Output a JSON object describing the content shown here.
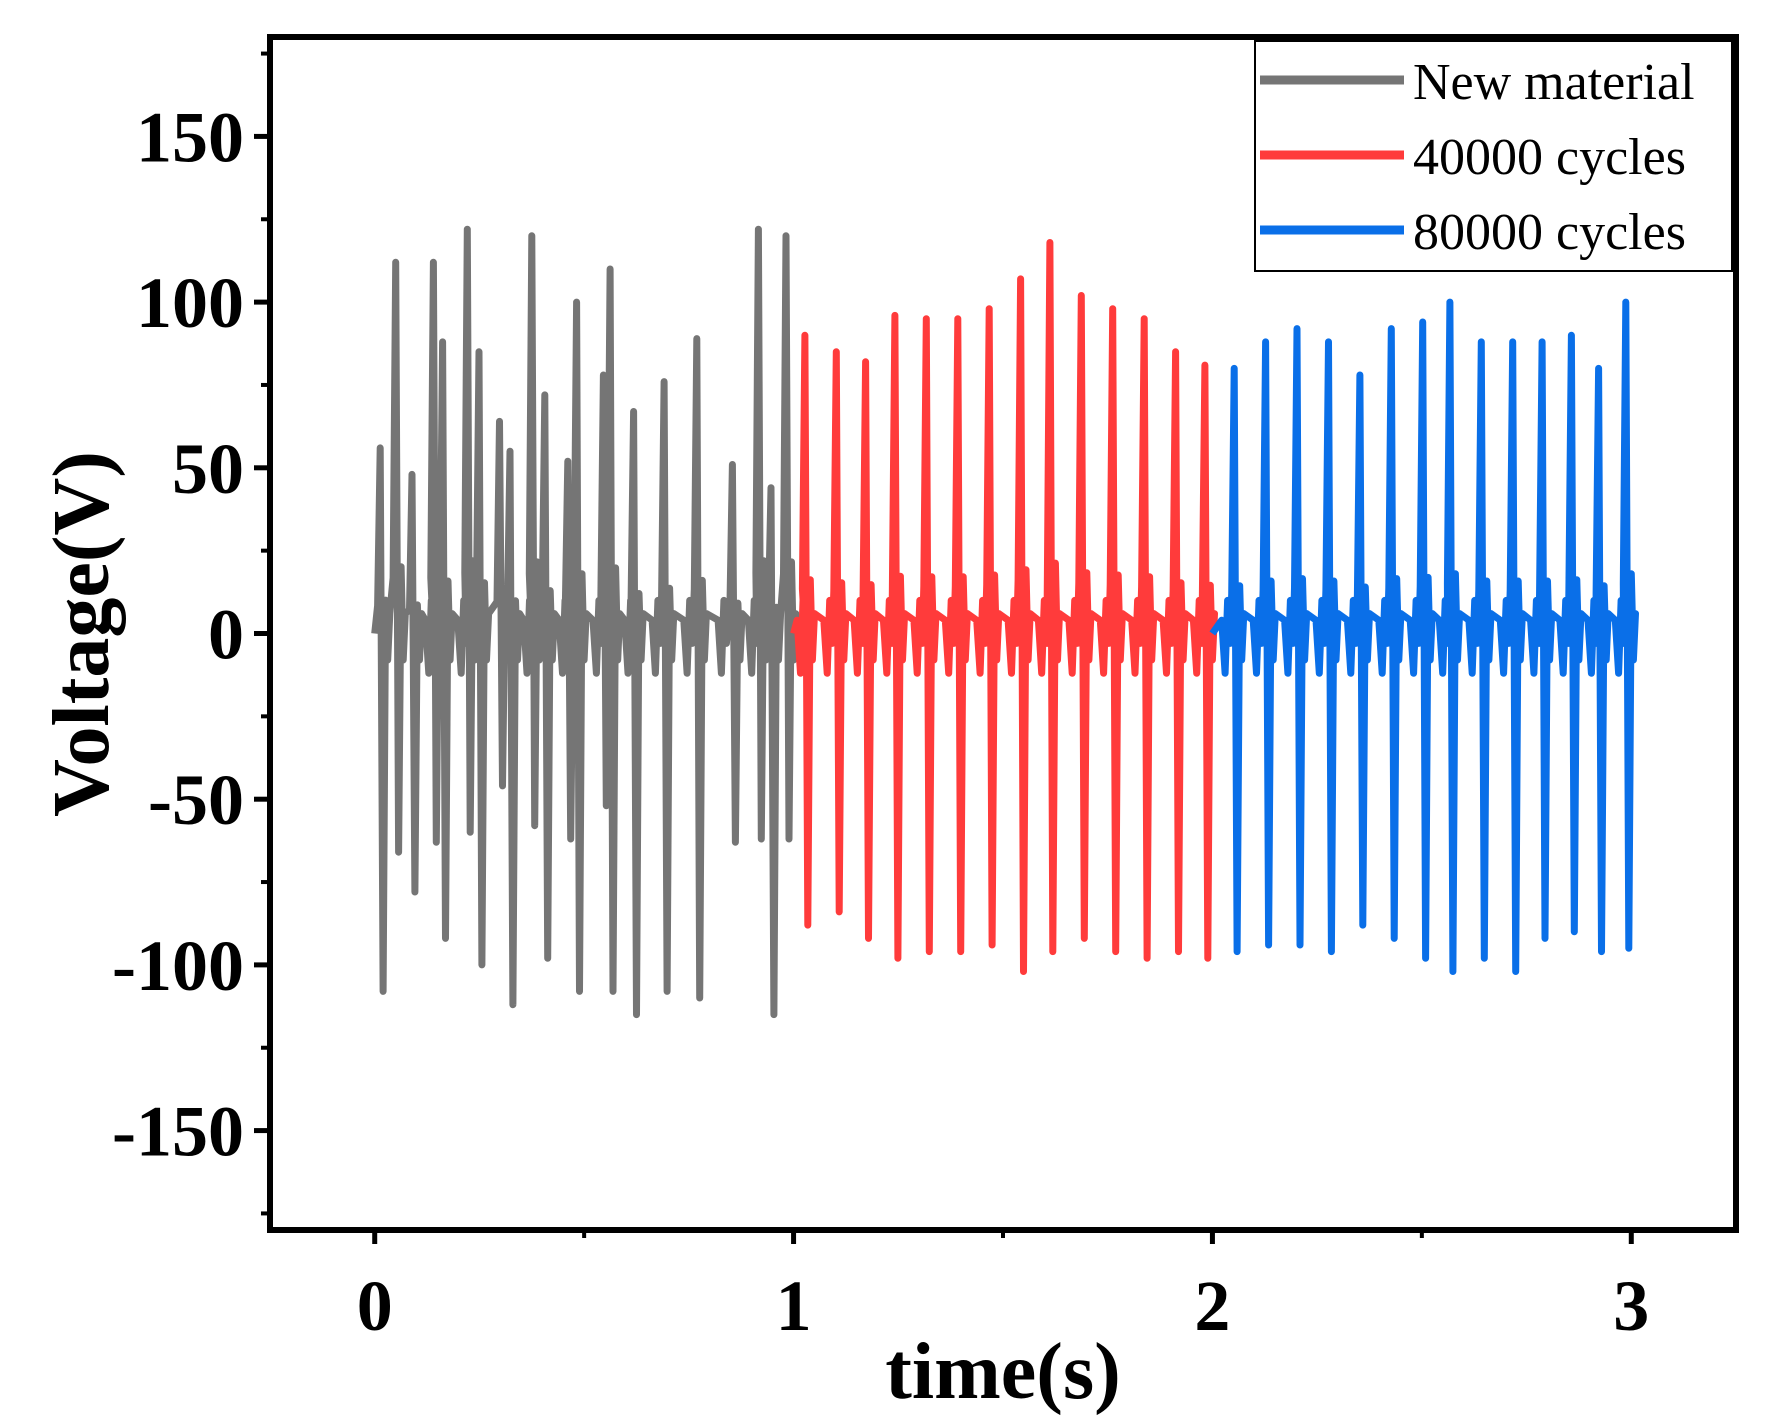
{
  "chart_data": {
    "type": "line",
    "title": "",
    "xlabel": "time(s)",
    "ylabel": "Voltage(V)",
    "xlim": [
      -0.25,
      3.25
    ],
    "ylim": [
      -180,
      180
    ],
    "xticks": [
      0,
      1,
      2,
      3
    ],
    "xtick_labels": [
      "0",
      "1",
      "2",
      "3"
    ],
    "yticks": [
      -150,
      -100,
      -50,
      0,
      50,
      100,
      150
    ],
    "ytick_labels": [
      "-150",
      "-100",
      "-50",
      "0",
      "50",
      "100",
      "150"
    ],
    "grid": false,
    "legend_position": "top-right",
    "series": [
      {
        "name": "New material",
        "color": "#757575",
        "x_range": [
          0,
          1
        ],
        "pulses": [
          {
            "t": 0.016,
            "max": 56,
            "min": -108
          },
          {
            "t": 0.053,
            "max": 112,
            "min": -66
          },
          {
            "t": 0.092,
            "max": 48,
            "min": -78
          },
          {
            "t": 0.143,
            "max": 112,
            "min": -63
          },
          {
            "t": 0.165,
            "max": 88,
            "min": -92
          },
          {
            "t": 0.224,
            "max": 122,
            "min": -60
          },
          {
            "t": 0.252,
            "max": 85,
            "min": -100
          },
          {
            "t": 0.301,
            "max": 64,
            "min": -46
          },
          {
            "t": 0.326,
            "max": 55,
            "min": -112
          },
          {
            "t": 0.378,
            "max": 120,
            "min": -58
          },
          {
            "t": 0.409,
            "max": 72,
            "min": -98
          },
          {
            "t": 0.464,
            "max": 52,
            "min": -62
          },
          {
            "t": 0.485,
            "max": 100,
            "min": -108
          },
          {
            "t": 0.549,
            "max": 78,
            "min": -52
          },
          {
            "t": 0.565,
            "max": 110,
            "min": -108
          },
          {
            "t": 0.621,
            "max": 67,
            "min": -115
          },
          {
            "t": 0.694,
            "max": 76,
            "min": -108
          },
          {
            "t": 0.772,
            "max": 89,
            "min": -110
          },
          {
            "t": 0.857,
            "max": 51,
            "min": -63
          },
          {
            "t": 0.919,
            "max": 122,
            "min": -62
          },
          {
            "t": 0.949,
            "max": 44,
            "min": -115
          },
          {
            "t": 0.985,
            "max": 120,
            "min": -62
          }
        ]
      },
      {
        "name": "40000 cycles",
        "color": "#ff3b3b",
        "x_range": [
          1,
          2
        ],
        "pulses": [
          {
            "t": 1.03,
            "max": 90,
            "min": -88
          },
          {
            "t": 1.105,
            "max": 85,
            "min": -84
          },
          {
            "t": 1.175,
            "max": 82,
            "min": -92
          },
          {
            "t": 1.245,
            "max": 96,
            "min": -98
          },
          {
            "t": 1.32,
            "max": 95,
            "min": -96
          },
          {
            "t": 1.395,
            "max": 95,
            "min": -96
          },
          {
            "t": 1.47,
            "max": 98,
            "min": -94
          },
          {
            "t": 1.545,
            "max": 107,
            "min": -102
          },
          {
            "t": 1.615,
            "max": 118,
            "min": -96
          },
          {
            "t": 1.69,
            "max": 102,
            "min": -92
          },
          {
            "t": 1.765,
            "max": 98,
            "min": -96
          },
          {
            "t": 1.84,
            "max": 95,
            "min": -98
          },
          {
            "t": 1.915,
            "max": 85,
            "min": -96
          },
          {
            "t": 1.985,
            "max": 81,
            "min": -98
          }
        ]
      },
      {
        "name": "80000 cycles",
        "color": "#0a6fe8",
        "x_range": [
          2,
          3
        ],
        "pulses": [
          {
            "t": 2.055,
            "max": 80,
            "min": -96
          },
          {
            "t": 2.13,
            "max": 88,
            "min": -94
          },
          {
            "t": 2.205,
            "max": 92,
            "min": -94
          },
          {
            "t": 2.28,
            "max": 88,
            "min": -96
          },
          {
            "t": 2.355,
            "max": 78,
            "min": -88
          },
          {
            "t": 2.43,
            "max": 92,
            "min": -92
          },
          {
            "t": 2.505,
            "max": 94,
            "min": -98
          },
          {
            "t": 2.57,
            "max": 100,
            "min": -102
          },
          {
            "t": 2.645,
            "max": 88,
            "min": -98
          },
          {
            "t": 2.72,
            "max": 88,
            "min": -102
          },
          {
            "t": 2.79,
            "max": 88,
            "min": -92
          },
          {
            "t": 2.86,
            "max": 90,
            "min": -90
          },
          {
            "t": 2.925,
            "max": 80,
            "min": -96
          },
          {
            "t": 2.99,
            "max": 100,
            "min": -95
          }
        ]
      }
    ]
  }
}
